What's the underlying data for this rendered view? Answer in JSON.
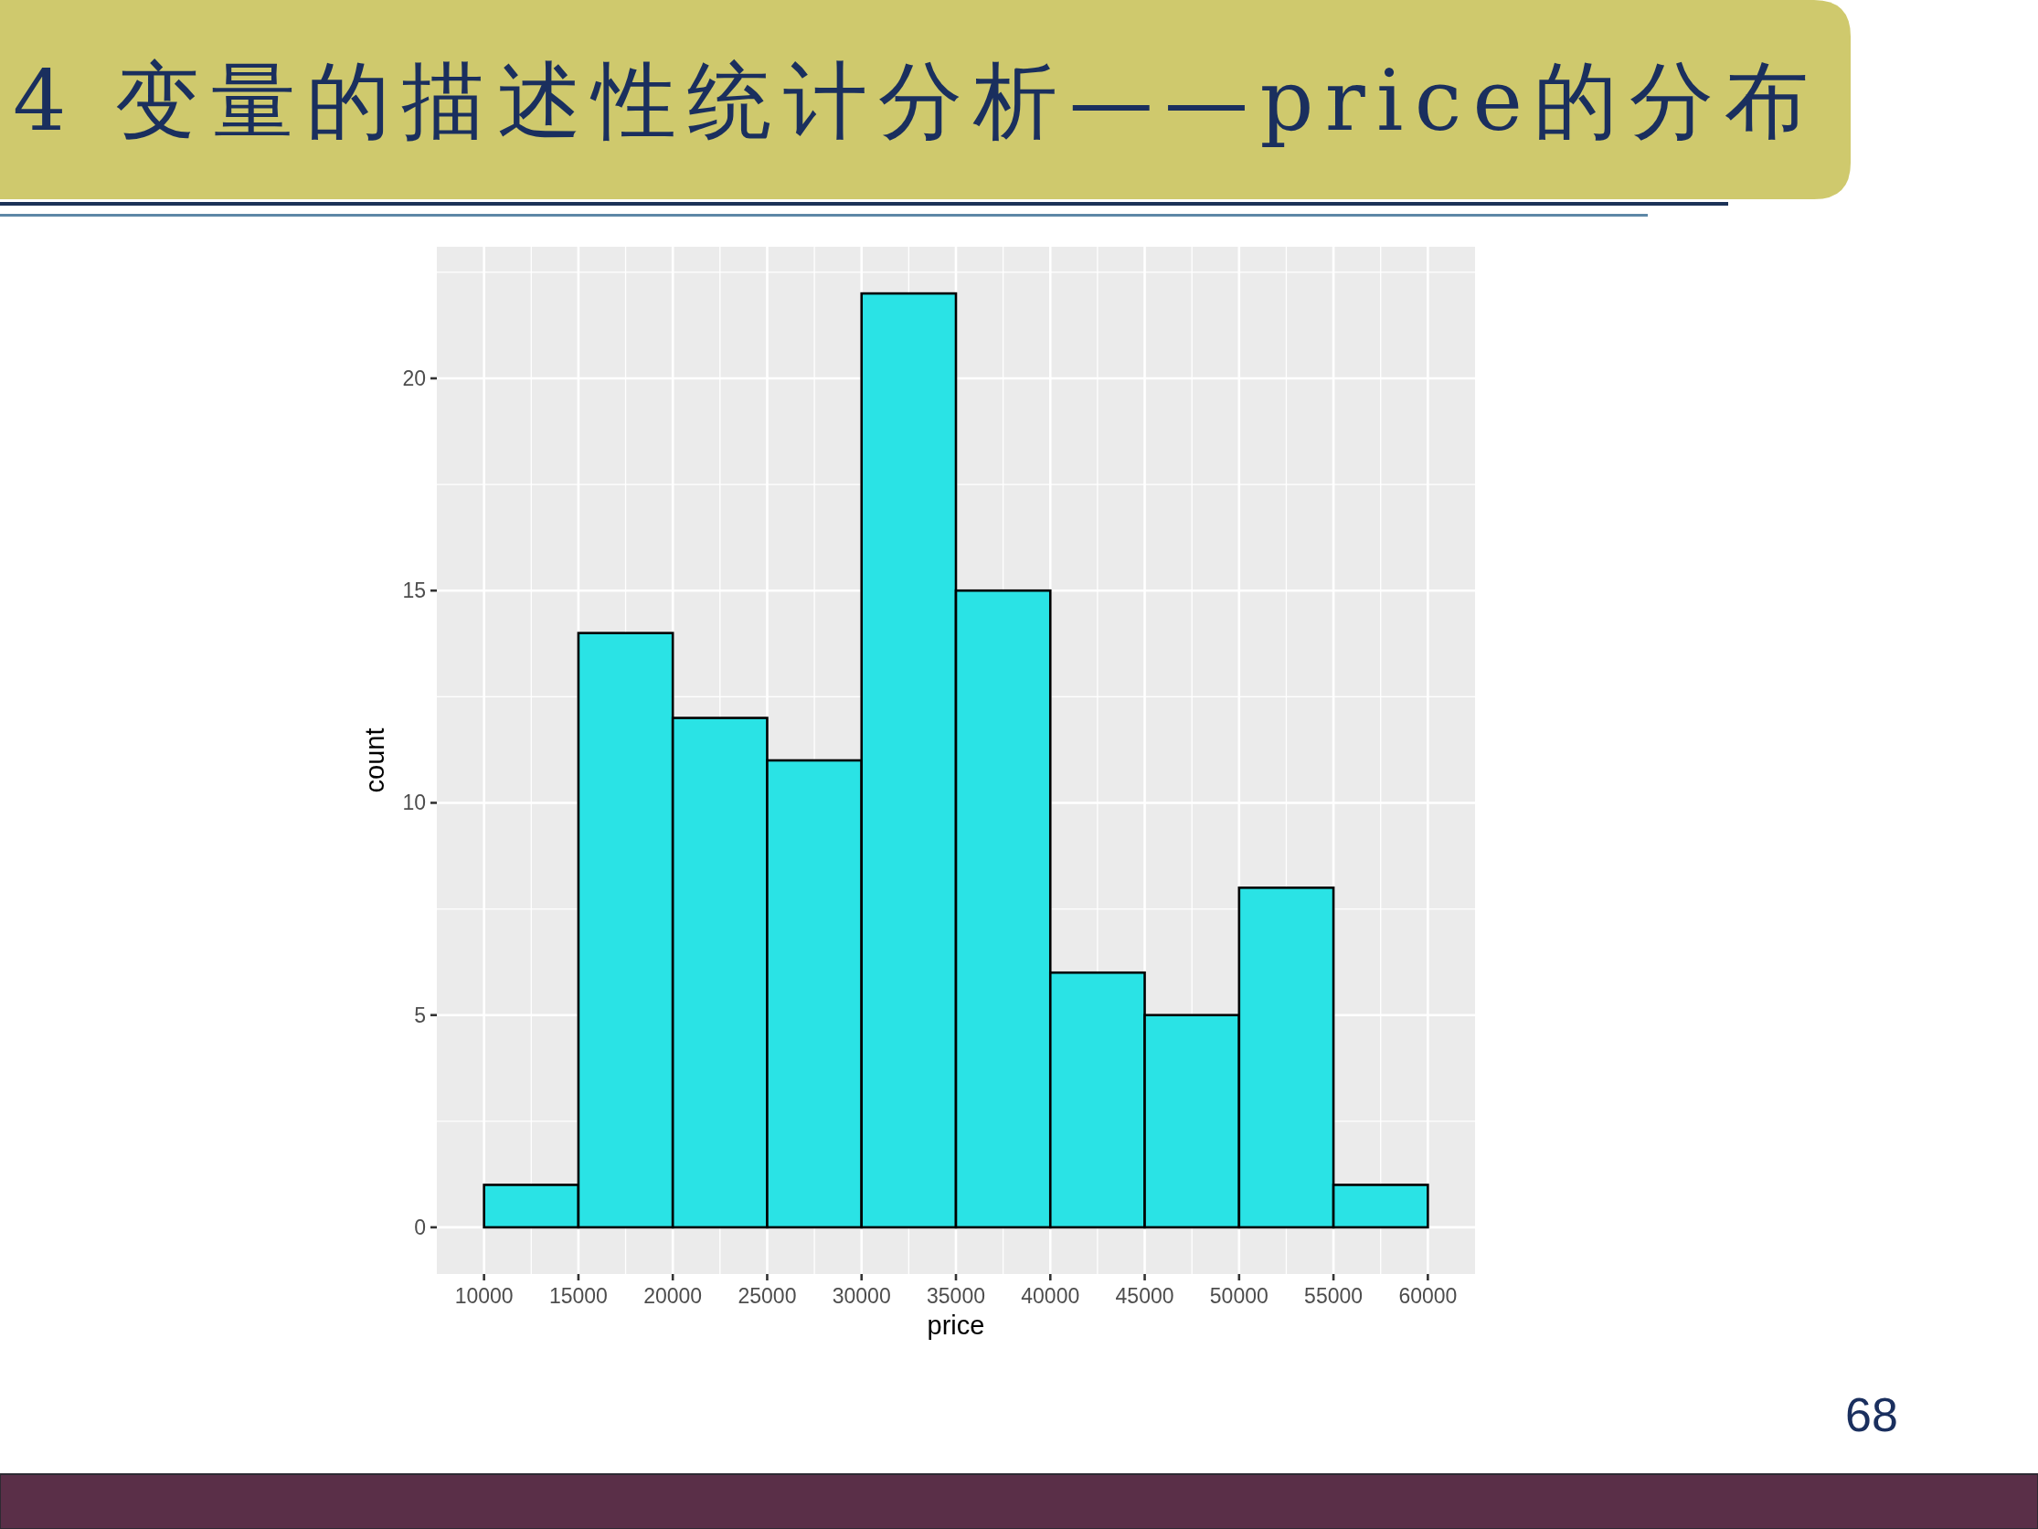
{
  "chart_data": {
    "type": "histogram",
    "title": "4 变量的描述性统计分析——price的分布",
    "xlabel": "price",
    "ylabel": "count",
    "bins": [
      10000,
      15000,
      20000,
      25000,
      30000,
      35000,
      40000,
      45000,
      50000,
      55000,
      60000
    ],
    "values": [
      1,
      14,
      12,
      11,
      22,
      15,
      6,
      5,
      8,
      1
    ],
    "color": "#2ae3e5",
    "xlim": [
      7500,
      62500
    ],
    "ylim": [
      -1.1,
      23.1
    ],
    "xticks": [
      10000,
      15000,
      20000,
      25000,
      30000,
      35000,
      40000,
      45000,
      50000,
      55000,
      60000
    ],
    "yticks": [
      0,
      5,
      10,
      15,
      20
    ],
    "grid": true,
    "annotations": [
      "68"
    ]
  }
}
